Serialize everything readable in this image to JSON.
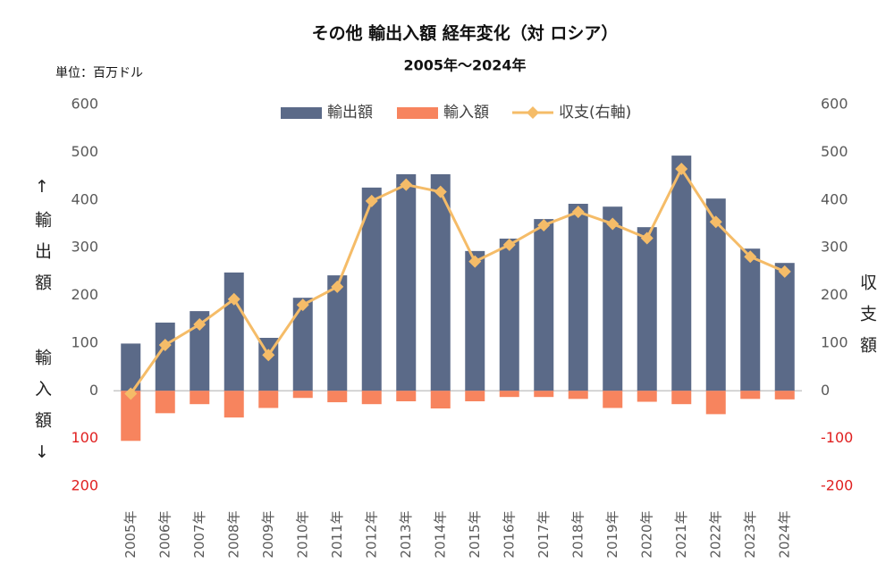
{
  "chart_data": {
    "type": "bar-line",
    "title": "その他 輸出入額 経年変化（対 ロシア）",
    "subtitle": "2005年～2024年",
    "unit_label": "単位：百万ドル",
    "y_label_top": "↑輸出額",
    "y_label_bottom": "輸入額↓",
    "y2_label": "収支額",
    "categories": [
      "2005年",
      "2006年",
      "2007年",
      "2008年",
      "2009年",
      "2010年",
      "2011年",
      "2012年",
      "2013年",
      "2014年",
      "2015年",
      "2016年",
      "2017年",
      "2018年",
      "2019年",
      "2020年",
      "2021年",
      "2022年",
      "2023年",
      "2024年"
    ],
    "series": [
      {
        "name": "輸出額",
        "type": "bar",
        "color": "#5b6a88",
        "values": [
          99,
          143,
          167,
          248,
          111,
          195,
          242,
          426,
          454,
          454,
          293,
          319,
          360,
          392,
          386,
          343,
          493,
          403,
          298,
          268
        ]
      },
      {
        "name": "輸入額",
        "type": "bar",
        "color": "#f7845e",
        "values": [
          -105,
          -47,
          -28,
          -56,
          -36,
          -15,
          -24,
          -28,
          -22,
          -37,
          -22,
          -13,
          -13,
          -17,
          -36,
          -23,
          -28,
          -49,
          -17,
          -18
        ]
      },
      {
        "name": "収支(右軸)",
        "type": "line",
        "axis": "y2",
        "color": "#f5bc68",
        "values": [
          -6,
          96,
          139,
          192,
          75,
          180,
          218,
          398,
          432,
          417,
          271,
          306,
          347,
          375,
          350,
          320,
          465,
          354,
          281,
          250
        ]
      }
    ],
    "ylim": [
      -200,
      600
    ],
    "yticks": [
      600,
      500,
      400,
      300,
      200,
      100,
      0,
      {
        "value": -100,
        "label": "100"
      },
      {
        "value": -200,
        "label": "200"
      }
    ],
    "y2lim": [
      -200,
      600
    ],
    "y2ticks": [
      600,
      500,
      400,
      300,
      200,
      100,
      0,
      -100,
      -200
    ],
    "negative_tick_color": "#e02020",
    "legend": "top"
  }
}
